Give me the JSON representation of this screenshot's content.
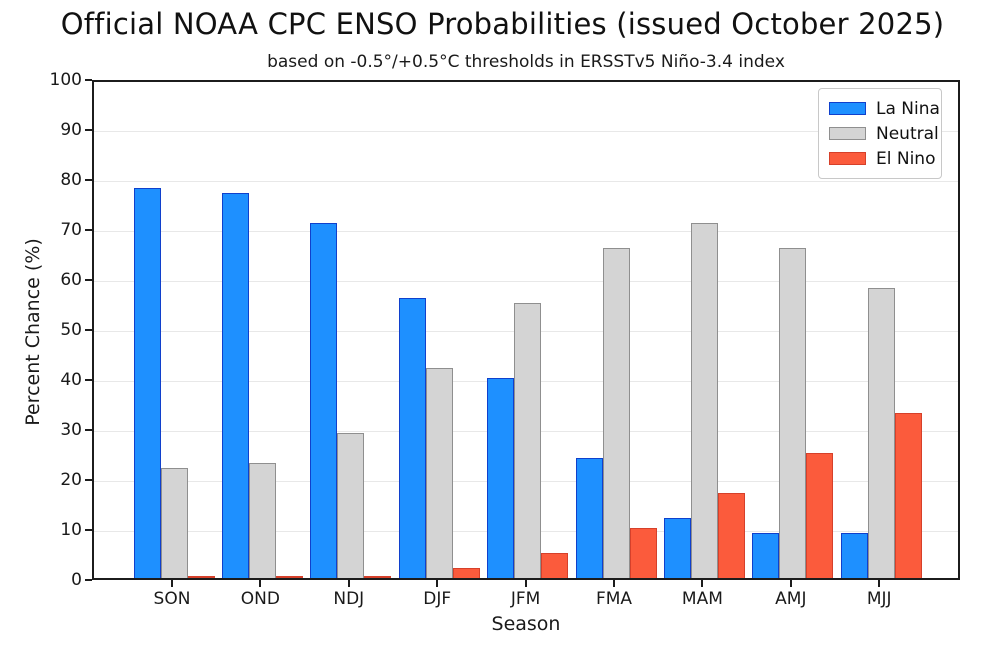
{
  "title": "Official NOAA CPC ENSO Probabilities (issued October 2025)",
  "subtitle": "based on -0.5°/+0.5°C thresholds in ERSSTv5 Niño-3.4 index",
  "chart_data": {
    "type": "bar",
    "categories": [
      "SON",
      "OND",
      "NDJ",
      "DJF",
      "JFM",
      "FMA",
      "MAM",
      "AMJ",
      "MJJ"
    ],
    "series": [
      {
        "name": "La Nina",
        "fill": "#1E90FF",
        "edge": "#1040CC",
        "values": [
          78,
          77,
          71,
          56,
          40,
          24,
          12,
          9,
          9
        ]
      },
      {
        "name": "Neutral",
        "fill": "#D4D4D4",
        "edge": "#8F8F8F",
        "values": [
          22,
          23,
          29,
          42,
          55,
          66,
          71,
          66,
          58
        ]
      },
      {
        "name": "El Nino",
        "fill": "#FB5B3C",
        "edge": "#D6402A",
        "values": [
          0,
          0,
          0,
          2,
          5,
          10,
          17,
          25,
          33
        ]
      }
    ],
    "title": "Official NOAA CPC ENSO Probabilities (issued October 2025)",
    "subtitle": "based on -0.5°/+0.5°C thresholds in ERSSTv5 Niño-3.4 index",
    "xlabel": "Season",
    "ylabel": "Percent Chance (%)",
    "ylim": [
      0,
      100
    ],
    "yticks": [
      0,
      10,
      20,
      30,
      40,
      50,
      60,
      70,
      80,
      90,
      100
    ],
    "grid": true,
    "legend_position": "upper right"
  }
}
